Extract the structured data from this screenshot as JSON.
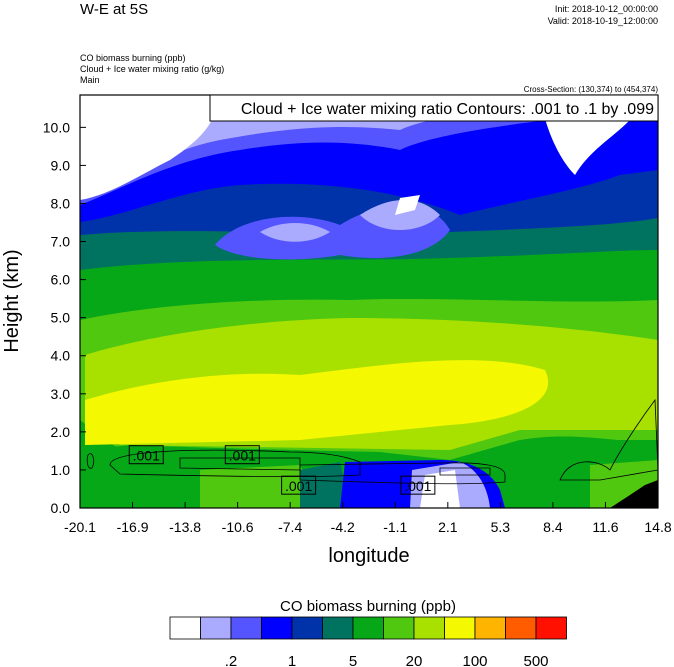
{
  "chart_data": {
    "type": "heatmap",
    "title": "W-E at 5S",
    "init": "Init: 2018-10-12_00:00:00",
    "valid": "Valid: 2018-10-19_12:00:00",
    "fields": [
      "CO biomass burning   (ppb)",
      "Cloud + Ice water mixing ratio   (g/kg)",
      "Main"
    ],
    "cross_section": "Cross-Section: (130,374) to (454,374)",
    "contour_info": "Cloud + Ice water mixing ratio Contours: .001 to .1 by .099",
    "xlabel": "longitude",
    "ylabel": "Height (km)",
    "xlim": [
      -20.1,
      14.8
    ],
    "ylim": [
      0,
      10.85
    ],
    "xticks": [
      "-20.1",
      "-16.9",
      "-13.8",
      "-10.6",
      "-7.4",
      "-4.2",
      "-1.1",
      "2.1",
      "5.3",
      "8.4",
      "11.6",
      "14.8"
    ],
    "yticks": [
      "0.0",
      "1.0",
      "2.0",
      "3.0",
      "4.0",
      "5.0",
      "6.0",
      "7.0",
      "8.0",
      "9.0",
      "10.0"
    ],
    "contour_labels": [
      {
        "text": ".001",
        "lon": -16.1,
        "z": 1.4
      },
      {
        "text": ".001",
        "lon": -10.3,
        "z": 1.4
      },
      {
        "text": ".001",
        "lon": -6.9,
        "z": 0.6
      },
      {
        "text": ".001",
        "lon": 0.3,
        "z": 0.6
      }
    ],
    "colorbar": {
      "title": "CO biomass burning  (ppb)",
      "colors": [
        "#ffffff",
        "#aaaaff",
        "#5555ff",
        "#0000ff",
        "#0033aa",
        "#007360",
        "#06a818",
        "#50c810",
        "#a8e000",
        "#f4f800",
        "#ffb400",
        "#ff5c00",
        "#ff1000"
      ],
      "labels": [
        {
          "text": ".2",
          "after_box": 2
        },
        {
          "text": "1",
          "after_box": 4
        },
        {
          "text": "5",
          "after_box": 6
        },
        {
          "text": "20",
          "after_box": 8
        },
        {
          "text": "100",
          "after_box": 10
        },
        {
          "text": "500",
          "after_box": 12
        }
      ]
    }
  }
}
